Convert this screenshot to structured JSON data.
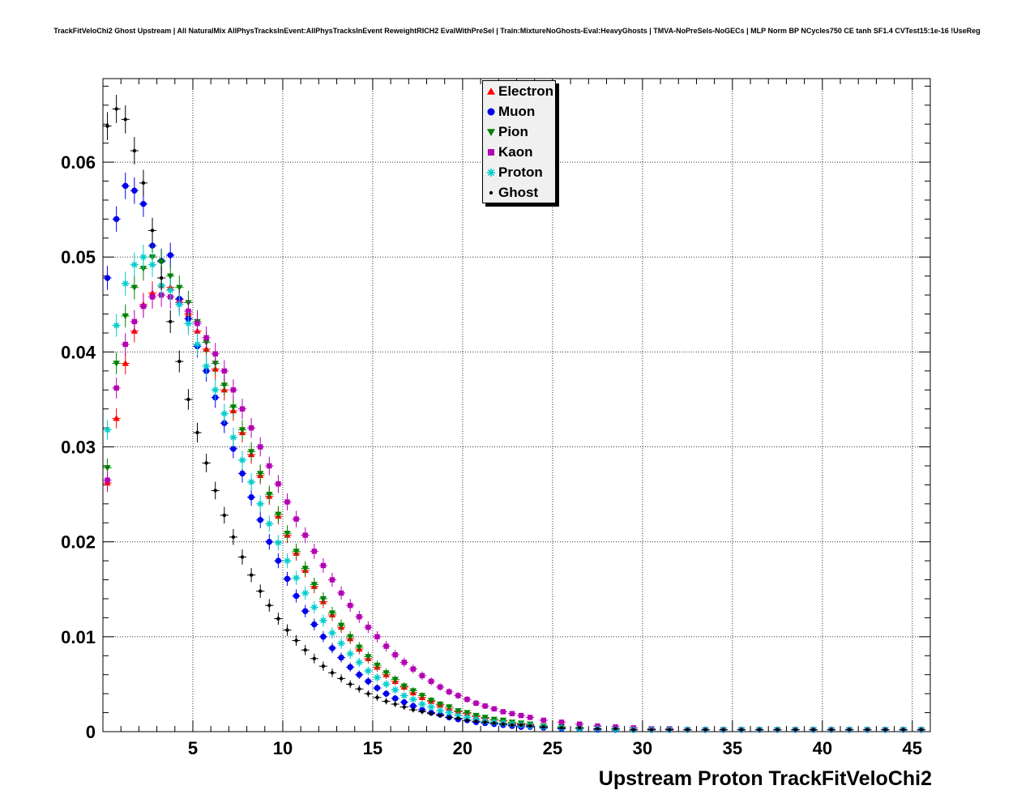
{
  "header": {
    "title": "TrackFitVeloChi2 Ghost Upstream | All NaturalMix AllPhysTracksInEvent:AllPhysTracksInEvent ReweightRICH2 EvalWithPreSel | Train:MixtureNoGhosts-Eval:HeavyGhosts | TMVA-NoPreSels-NoGECs | MLP Norm BP NCycles750 CE tanh SF1.4 CVTest15:1e-16 !UseReg"
  },
  "chart_data": {
    "type": "scatter",
    "xlabel": "Upstream Proton TrackFitVeloChi2",
    "ylabel": "",
    "xlim": [
      0,
      46
    ],
    "ylim": [
      0,
      0.0688
    ],
    "grid": true,
    "legend_position": "top-center",
    "x_ticks": [
      5,
      10,
      15,
      20,
      25,
      30,
      35,
      40,
      45
    ],
    "x_tick_labels": [
      "5",
      "10",
      "15",
      "20",
      "25",
      "30",
      "35",
      "40",
      "45"
    ],
    "y_ticks": [
      0,
      0.01,
      0.02,
      0.03,
      0.04,
      0.05,
      0.06
    ],
    "y_tick_labels": [
      "0",
      "0.01",
      "0.02",
      "0.03",
      "0.04",
      "0.05",
      "0.06"
    ],
    "x_minor_step": 1,
    "y_minor_step": 0.002,
    "x": [
      0.25,
      0.75,
      1.25,
      1.75,
      2.25,
      2.75,
      3.25,
      3.75,
      4.25,
      4.75,
      5.25,
      5.75,
      6.25,
      6.75,
      7.25,
      7.75,
      8.25,
      8.75,
      9.25,
      9.75,
      10.25,
      10.75,
      11.25,
      11.75,
      12.25,
      12.75,
      13.25,
      13.75,
      14.25,
      14.75,
      15.25,
      15.75,
      16.25,
      16.75,
      17.25,
      17.75,
      18.25,
      18.75,
      19.25,
      19.75,
      20.25,
      20.75,
      21.25,
      21.75,
      22.25,
      22.75,
      23.25,
      23.75,
      24.5,
      25.5,
      26.5,
      27.5,
      28.5,
      29.5,
      30.5,
      31.5,
      32.5,
      33.5,
      34.5,
      35.5,
      36.5,
      37.5,
      38.5,
      39.5,
      40.5,
      41.5,
      42.5,
      43.5,
      44.5,
      45.5
    ],
    "series": [
      {
        "name": "Electron",
        "color": "#ff0000",
        "marker": "triangle-up",
        "values": [
          0.0262,
          0.033,
          0.0388,
          0.0422,
          0.045,
          0.0462,
          0.047,
          0.0468,
          0.0455,
          0.044,
          0.0422,
          0.0403,
          0.0382,
          0.036,
          0.0338,
          0.0315,
          0.0292,
          0.027,
          0.0248,
          0.0227,
          0.0207,
          0.0188,
          0.017,
          0.0153,
          0.0137,
          0.0123,
          0.011,
          0.0098,
          0.0087,
          0.0077,
          0.0068,
          0.006,
          0.0053,
          0.0047,
          0.0041,
          0.0036,
          0.0032,
          0.0028,
          0.0024,
          0.0021,
          0.0019,
          0.0016,
          0.0014,
          0.0012,
          0.0011,
          0.0009,
          0.0008,
          0.0007,
          0.0006,
          0.0005,
          0.0004,
          0.0003,
          0.0003,
          0.0002,
          0.0002,
          0.0002,
          0.0002,
          0.0002,
          0.0002,
          0.0002,
          0.0002,
          0.0002,
          0.0002,
          0.0002,
          0.0002,
          0.0002,
          0.0002,
          0.0002,
          0.0002,
          0.0002
        ]
      },
      {
        "name": "Muon",
        "color": "#0000ee",
        "marker": "circle",
        "values": [
          0.0478,
          0.054,
          0.0575,
          0.057,
          0.0556,
          0.0512,
          0.0496,
          0.0502,
          0.0456,
          0.0435,
          0.0406,
          0.038,
          0.0352,
          0.0325,
          0.0298,
          0.0272,
          0.0247,
          0.0223,
          0.02,
          0.018,
          0.0161,
          0.0143,
          0.0127,
          0.0113,
          0.01,
          0.0088,
          0.0078,
          0.0068,
          0.006,
          0.0053,
          0.0046,
          0.004,
          0.0035,
          0.0031,
          0.0027,
          0.0023,
          0.002,
          0.0018,
          0.0015,
          0.0013,
          0.0012,
          0.001,
          0.0009,
          0.0008,
          0.0007,
          0.0006,
          0.0005,
          0.0005,
          0.0004,
          0.0003,
          0.0003,
          0.0002,
          0.0002,
          0.0002,
          0.0002,
          0.0002,
          0.0002,
          0.0002,
          0.0002,
          0.0002,
          0.0002,
          0.0002,
          0.0002,
          0.0002,
          0.0002,
          0.0002,
          0.0002,
          0.0002,
          0.0002,
          0.0002
        ]
      },
      {
        "name": "Pion",
        "color": "#008000",
        "marker": "triangle-down",
        "values": [
          0.0278,
          0.0388,
          0.0438,
          0.0468,
          0.0488,
          0.05,
          0.0495,
          0.048,
          0.0468,
          0.0452,
          0.0432,
          0.041,
          0.0388,
          0.0365,
          0.0342,
          0.0318,
          0.0295,
          0.0272,
          0.025,
          0.0229,
          0.0209,
          0.019,
          0.0172,
          0.0155,
          0.014,
          0.0125,
          0.0112,
          0.01,
          0.0089,
          0.0079,
          0.007,
          0.0062,
          0.0055,
          0.0048,
          0.0043,
          0.0038,
          0.0033,
          0.0029,
          0.0026,
          0.0022,
          0.002,
          0.0017,
          0.0015,
          0.0013,
          0.0012,
          0.001,
          0.0009,
          0.0008,
          0.0006,
          0.0005,
          0.0004,
          0.0003,
          0.0003,
          0.0002,
          0.0002,
          0.0002,
          0.0002,
          0.0002,
          0.0002,
          0.0002,
          0.0002,
          0.0002,
          0.0002,
          0.0002,
          0.0002,
          0.0002,
          0.0002,
          0.0002,
          0.0002,
          0.0002
        ]
      },
      {
        "name": "Kaon",
        "color": "#b300b3",
        "marker": "square",
        "values": [
          0.0265,
          0.0362,
          0.0408,
          0.0432,
          0.0448,
          0.0458,
          0.046,
          0.0458,
          0.0452,
          0.0443,
          0.043,
          0.0415,
          0.0398,
          0.038,
          0.036,
          0.034,
          0.032,
          0.03,
          0.028,
          0.0261,
          0.0242,
          0.0224,
          0.0207,
          0.019,
          0.0175,
          0.016,
          0.0146,
          0.0133,
          0.0121,
          0.011,
          0.01,
          0.009,
          0.0081,
          0.0073,
          0.0066,
          0.0059,
          0.0053,
          0.0047,
          0.0042,
          0.0038,
          0.0034,
          0.003,
          0.0027,
          0.0024,
          0.0021,
          0.0019,
          0.0017,
          0.0015,
          0.0012,
          0.001,
          0.0008,
          0.0006,
          0.0005,
          0.0004,
          0.0003,
          0.0003,
          0.0002,
          0.0002,
          0.0002,
          0.0002,
          0.0002,
          0.0002,
          0.0002,
          0.0002,
          0.0002,
          0.0002,
          0.0002,
          0.0002,
          0.0002,
          0.0002
        ]
      },
      {
        "name": "Proton",
        "color": "#00cccc",
        "marker": "star",
        "values": [
          0.0318,
          0.0428,
          0.0472,
          0.0492,
          0.05,
          0.0492,
          0.047,
          0.0465,
          0.045,
          0.043,
          0.0408,
          0.0385,
          0.036,
          0.0335,
          0.031,
          0.0286,
          0.0263,
          0.024,
          0.0219,
          0.0199,
          0.018,
          0.0162,
          0.0146,
          0.0131,
          0.0117,
          0.0104,
          0.0093,
          0.0082,
          0.0073,
          0.0064,
          0.0057,
          0.005,
          0.0044,
          0.0038,
          0.0034,
          0.0029,
          0.0026,
          0.0022,
          0.002,
          0.0017,
          0.0015,
          0.0013,
          0.0011,
          0.001,
          0.0009,
          0.0008,
          0.0007,
          0.0006,
          0.0005,
          0.0004,
          0.0003,
          0.0003,
          0.0002,
          0.0002,
          0.0002,
          0.0002,
          0.0002,
          0.0002,
          0.0002,
          0.0002,
          0.0002,
          0.0002,
          0.0002,
          0.0002,
          0.0002,
          0.0002,
          0.0002,
          0.0002,
          0.0002,
          0.0002
        ]
      },
      {
        "name": "Ghost",
        "color": "#000000",
        "marker": "dot",
        "values": [
          0.0638,
          0.0656,
          0.0645,
          0.0612,
          0.0578,
          0.0528,
          0.0478,
          0.0432,
          0.039,
          0.035,
          0.0315,
          0.0283,
          0.0254,
          0.0228,
          0.0205,
          0.0184,
          0.0165,
          0.0148,
          0.0133,
          0.0119,
          0.0107,
          0.0096,
          0.0086,
          0.0077,
          0.0069,
          0.0062,
          0.0056,
          0.005,
          0.0045,
          0.004,
          0.0036,
          0.0032,
          0.0029,
          0.0026,
          0.0023,
          0.0021,
          0.0019,
          0.0017,
          0.0015,
          0.0014,
          0.0012,
          0.0011,
          0.001,
          0.0009,
          0.0008,
          0.0007,
          0.0007,
          0.0006,
          0.0005,
          0.0004,
          0.0004,
          0.0003,
          0.0003,
          0.0002,
          0.0002,
          0.0002,
          0.0002,
          0.0002,
          0.0002,
          0.0002,
          0.0002,
          0.0002,
          0.0002,
          0.0002,
          0.0002,
          0.0002,
          0.0002,
          0.0002,
          0.0002,
          0.0002
        ]
      }
    ]
  }
}
